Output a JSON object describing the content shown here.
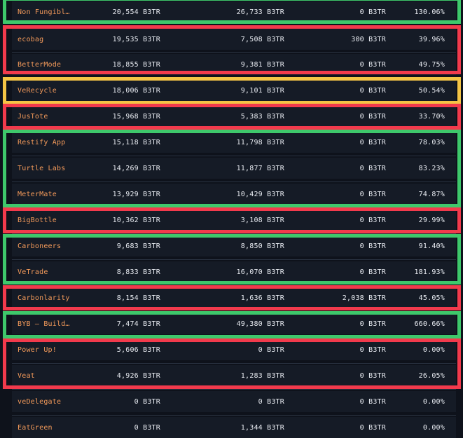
{
  "colors": {
    "background": "#0e121b",
    "row": "#151b26",
    "separator": "#2b3443",
    "name_text": "#f39a5a",
    "value_text": "#e9ecf2",
    "highlight_green": "#3ec86b",
    "highlight_red": "#f23a4c",
    "highlight_yellow": "#f4c445"
  },
  "rows": [
    {
      "name": "Non Fungibl…",
      "col1": "20,554 B3TR",
      "col2": "26,733 B3TR",
      "col3": "0 B3TR",
      "col4": "130.06%",
      "highlight": "green"
    },
    {
      "name": "ecobag",
      "col1": "19,535 B3TR",
      "col2": "7,508 B3TR",
      "col3": "300 B3TR",
      "col4": "39.96%",
      "highlight": "red"
    },
    {
      "name": "BetterMode",
      "col1": "18,855 B3TR",
      "col2": "9,381 B3TR",
      "col3": "0 B3TR",
      "col4": "49.75%",
      "highlight": "red"
    },
    {
      "name": "VeRecycle",
      "col1": "18,006 B3TR",
      "col2": "9,101 B3TR",
      "col3": "0 B3TR",
      "col4": "50.54%",
      "highlight": "yellow"
    },
    {
      "name": "JusTote",
      "col1": "15,968 B3TR",
      "col2": "5,383 B3TR",
      "col3": "0 B3TR",
      "col4": "33.70%",
      "highlight": "red"
    },
    {
      "name": "Restify App",
      "col1": "15,118 B3TR",
      "col2": "11,798 B3TR",
      "col3": "0 B3TR",
      "col4": "78.03%",
      "highlight": "green"
    },
    {
      "name": "Turtle Labs",
      "col1": "14,269 B3TR",
      "col2": "11,877 B3TR",
      "col3": "0 B3TR",
      "col4": "83.23%",
      "highlight": "green"
    },
    {
      "name": "MeterMate",
      "col1": "13,929 B3TR",
      "col2": "10,429 B3TR",
      "col3": "0 B3TR",
      "col4": "74.87%",
      "highlight": "green"
    },
    {
      "name": "BigBottle",
      "col1": "10,362 B3TR",
      "col2": "3,108 B3TR",
      "col3": "0 B3TR",
      "col4": "29.99%",
      "highlight": "red"
    },
    {
      "name": "Carboneers",
      "col1": "9,683 B3TR",
      "col2": "8,850 B3TR",
      "col3": "0 B3TR",
      "col4": "91.40%",
      "highlight": "green"
    },
    {
      "name": "VeTrade",
      "col1": "8,833 B3TR",
      "col2": "16,070 B3TR",
      "col3": "0 B3TR",
      "col4": "181.93%",
      "highlight": "green"
    },
    {
      "name": "Carbonlarity",
      "col1": "8,154 B3TR",
      "col2": "1,636 B3TR",
      "col3": "2,038 B3TR",
      "col4": "45.05%",
      "highlight": "red"
    },
    {
      "name": "BYB – Build…",
      "col1": "7,474 B3TR",
      "col2": "49,380 B3TR",
      "col3": "0 B3TR",
      "col4": "660.66%",
      "highlight": "green"
    },
    {
      "name": "Power Up!",
      "col1": "5,606 B3TR",
      "col2": "0 B3TR",
      "col3": "0 B3TR",
      "col4": "0.00%",
      "highlight": "red"
    },
    {
      "name": "Veat",
      "col1": "4,926 B3TR",
      "col2": "1,283 B3TR",
      "col3": "0 B3TR",
      "col4": "26.05%",
      "highlight": "red"
    },
    {
      "name": "veDelegate",
      "col1": "0 B3TR",
      "col2": "0 B3TR",
      "col3": "0 B3TR",
      "col4": "0.00%",
      "highlight": "none"
    },
    {
      "name": "EatGreen",
      "col1": "0 B3TR",
      "col2": "1,344 B3TR",
      "col3": "0 B3TR",
      "col4": "0.00%",
      "highlight": "none"
    }
  ]
}
